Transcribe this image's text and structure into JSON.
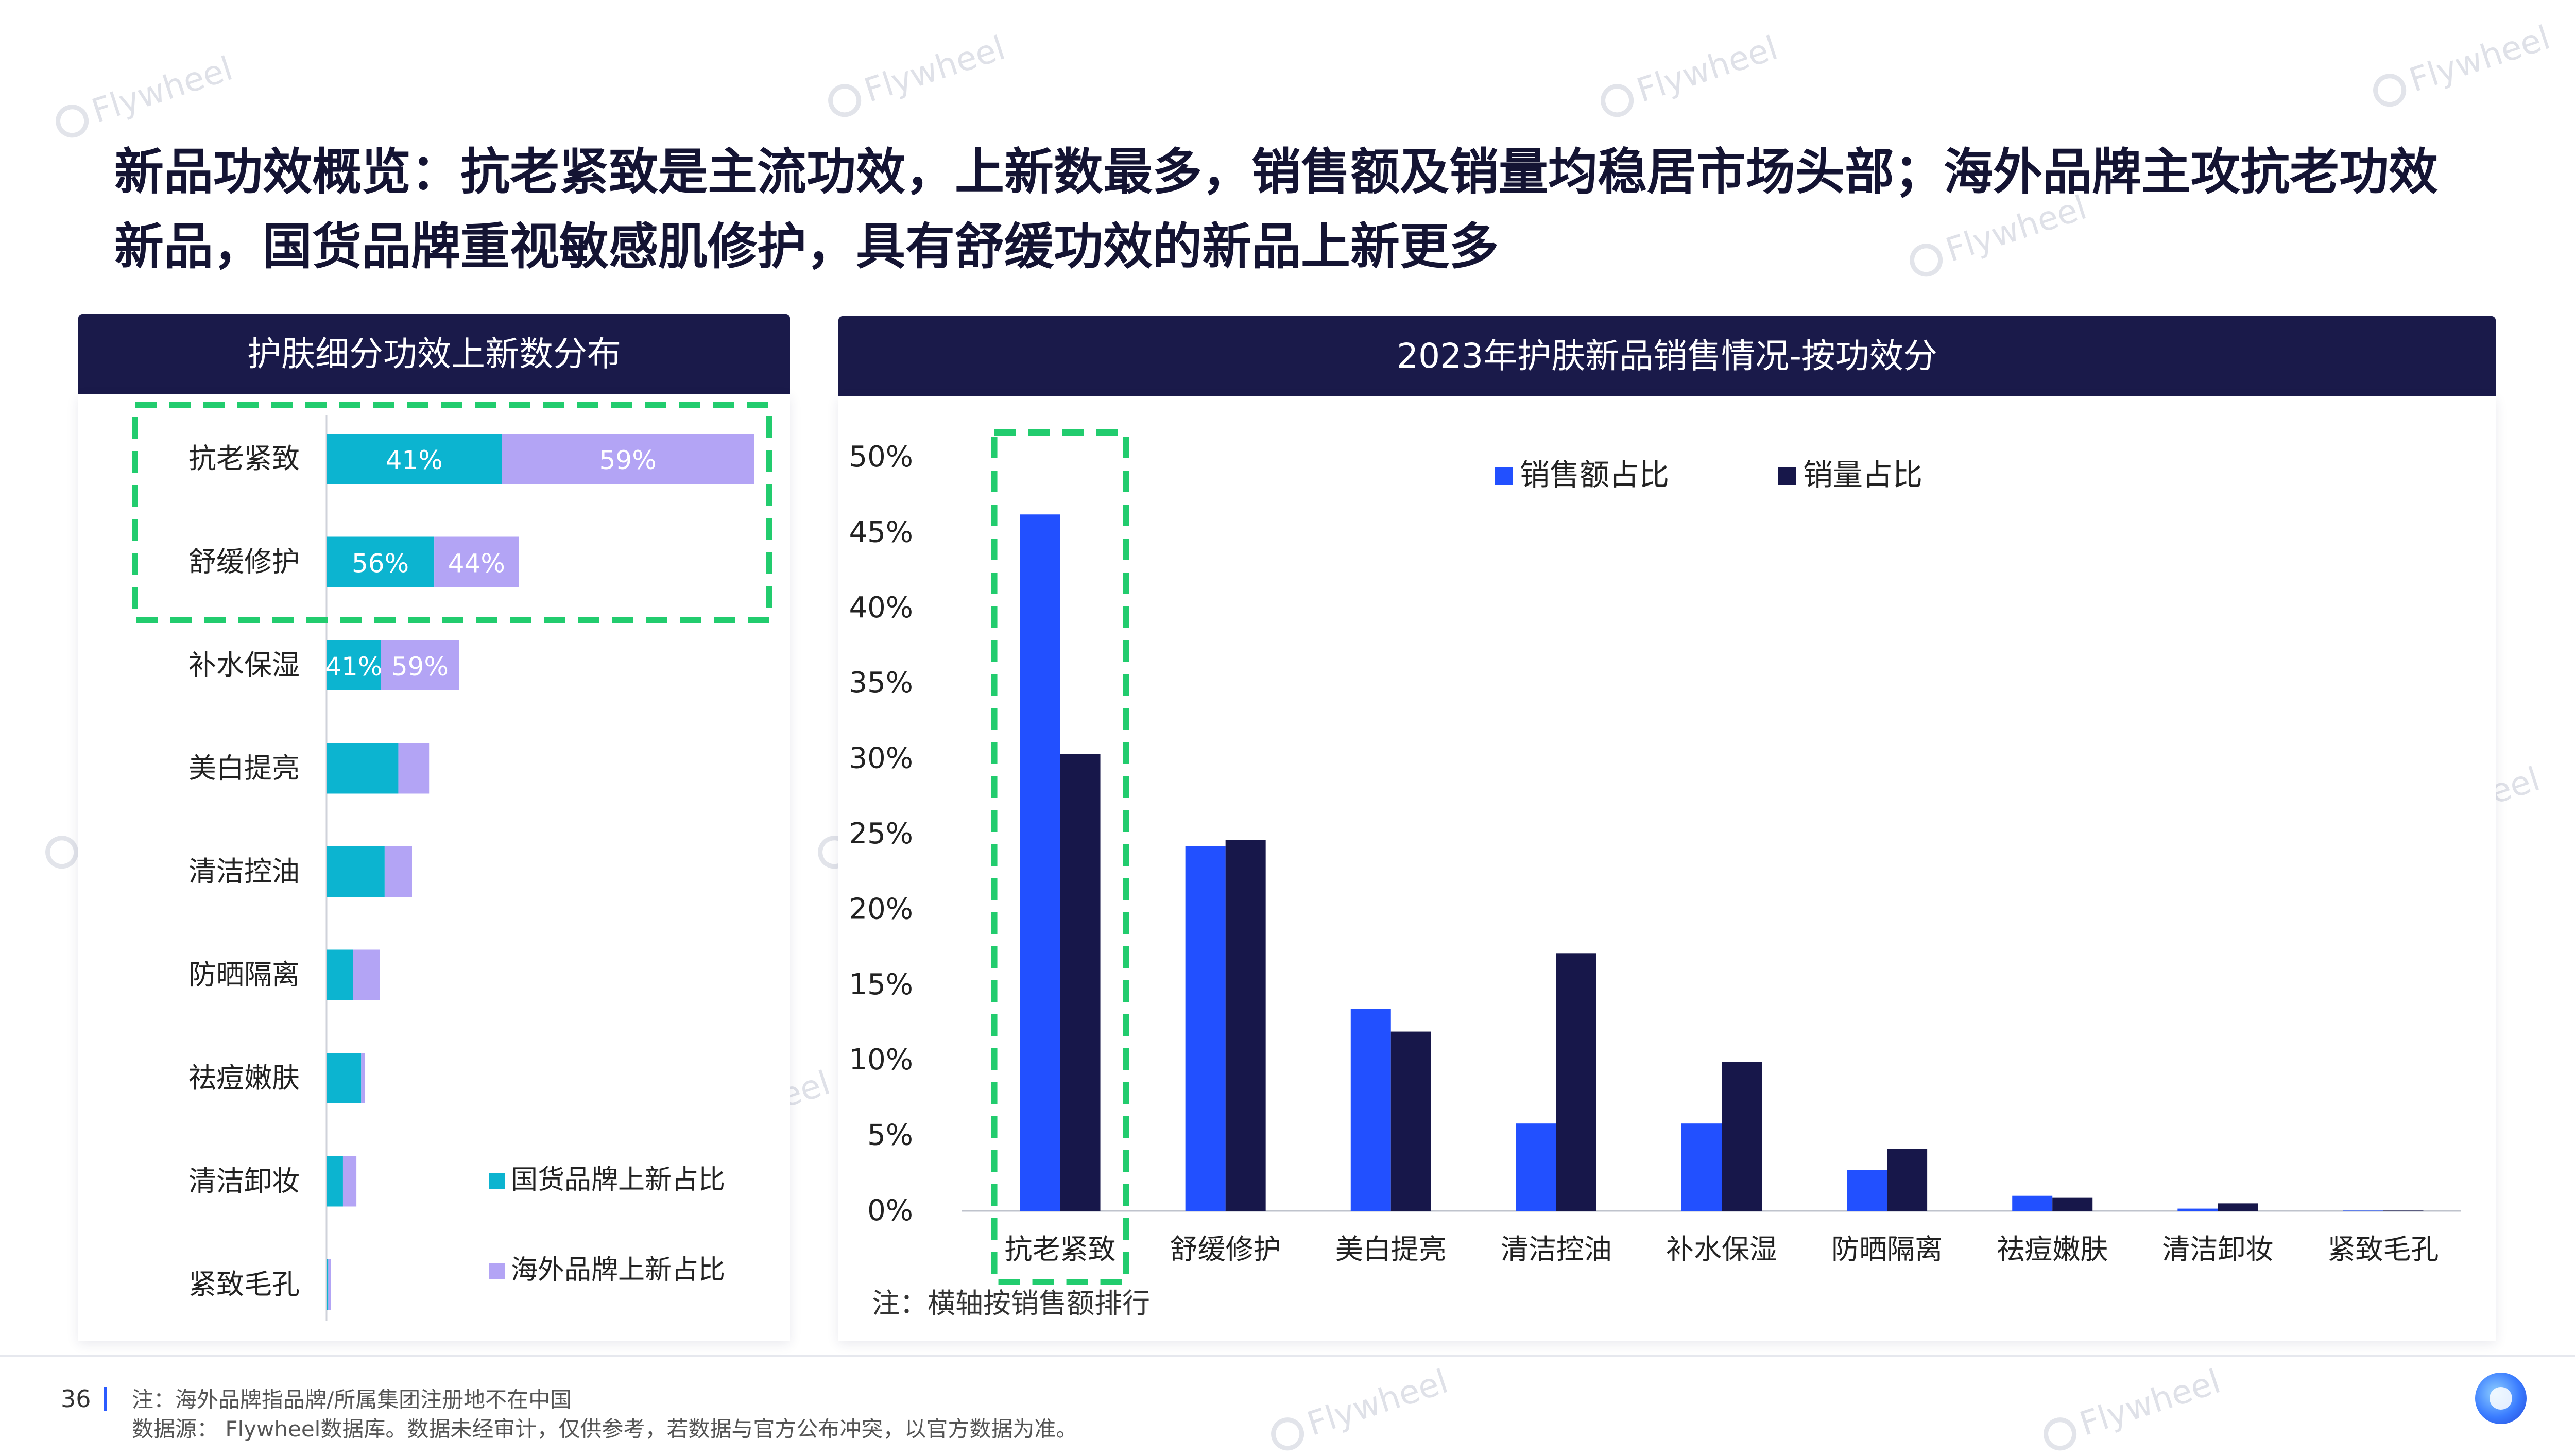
{
  "title": "新品功效概览：抗老紧致是主流功效，上新数最多，销售额及销量均稳居市场头部；海外品牌主攻抗老功效新品，国货品牌重视敏感肌修护，具有舒缓功效的新品上新更多",
  "watermark": "Flywheel",
  "colors": {
    "domestic": "#0cb4d0",
    "overseas": "#b3a4f5",
    "sales_amount": "#2250ff",
    "sales_volume": "#17174a",
    "highlight": "#22cc6e",
    "header": "#1a1a4a"
  },
  "left_panel": {
    "header": "护肤细分功效上新数分布",
    "legend": [
      "国货品牌上新占比",
      "海外品牌上新占比"
    ]
  },
  "right_panel": {
    "header": "2023年护肤新品销售情况-按功效分",
    "legend": [
      "销售额占比",
      "销量占比"
    ],
    "note": "注：横轴按销售额排行"
  },
  "footer": {
    "page_number": "36",
    "note": "注：海外品牌指品牌/所属集团注册地不在中国",
    "source": "数据源： Flywheel数据库。数据未经审计，仅供参考，若数据与官方公布冲突，以官方数据为准。"
  },
  "chart_data": [
    {
      "type": "bar",
      "orientation": "horizontal",
      "stacked": true,
      "title": "护肤细分功效上新数分布",
      "categories": [
        "抗老紧致",
        "舒缓修护",
        "补水保湿",
        "美白提亮",
        "清洁控油",
        "防晒隔离",
        "祛痘嫩肤",
        "清洁卸妆",
        "紧致毛孔"
      ],
      "relative_total": [
        100,
        45,
        31,
        24,
        20,
        12.5,
        9,
        7,
        1
      ],
      "series": [
        {
          "name": "国货品牌上新占比",
          "values": [
            41,
            56,
            41,
            70,
            68,
            50,
            90,
            55,
            40
          ],
          "labels": [
            "41%",
            "56%",
            "41%",
            "",
            "",
            "",
            "",
            "",
            ""
          ]
        },
        {
          "name": "海外品牌上新占比",
          "values": [
            59,
            44,
            59,
            30,
            32,
            50,
            10,
            45,
            60
          ],
          "labels": [
            "59%",
            "44%",
            "59%",
            "",
            "",
            "",
            "",
            "",
            ""
          ]
        }
      ],
      "highlight": [
        "抗老紧致",
        "舒缓修护"
      ]
    },
    {
      "type": "bar",
      "title": "2023年护肤新品销售情况-按功效分",
      "categories": [
        "抗老紧致",
        "舒缓修护",
        "美白提亮",
        "清洁控油",
        "补水保湿",
        "防晒隔离",
        "祛痘嫩肤",
        "清洁卸妆",
        "紧致毛孔"
      ],
      "series": [
        {
          "name": "销售额占比",
          "values": [
            46.2,
            24.2,
            13.4,
            5.8,
            5.8,
            2.7,
            1.0,
            0.15,
            0.02
          ]
        },
        {
          "name": "销量占比",
          "values": [
            30.3,
            24.6,
            11.9,
            17.1,
            9.9,
            4.1,
            0.9,
            0.5,
            0.02
          ]
        }
      ],
      "ylim": [
        0,
        50
      ],
      "yticks": [
        "0%",
        "5%",
        "10%",
        "15%",
        "20%",
        "25%",
        "30%",
        "35%",
        "40%",
        "45%",
        "50%"
      ],
      "highlight": [
        "抗老紧致"
      ]
    }
  ]
}
